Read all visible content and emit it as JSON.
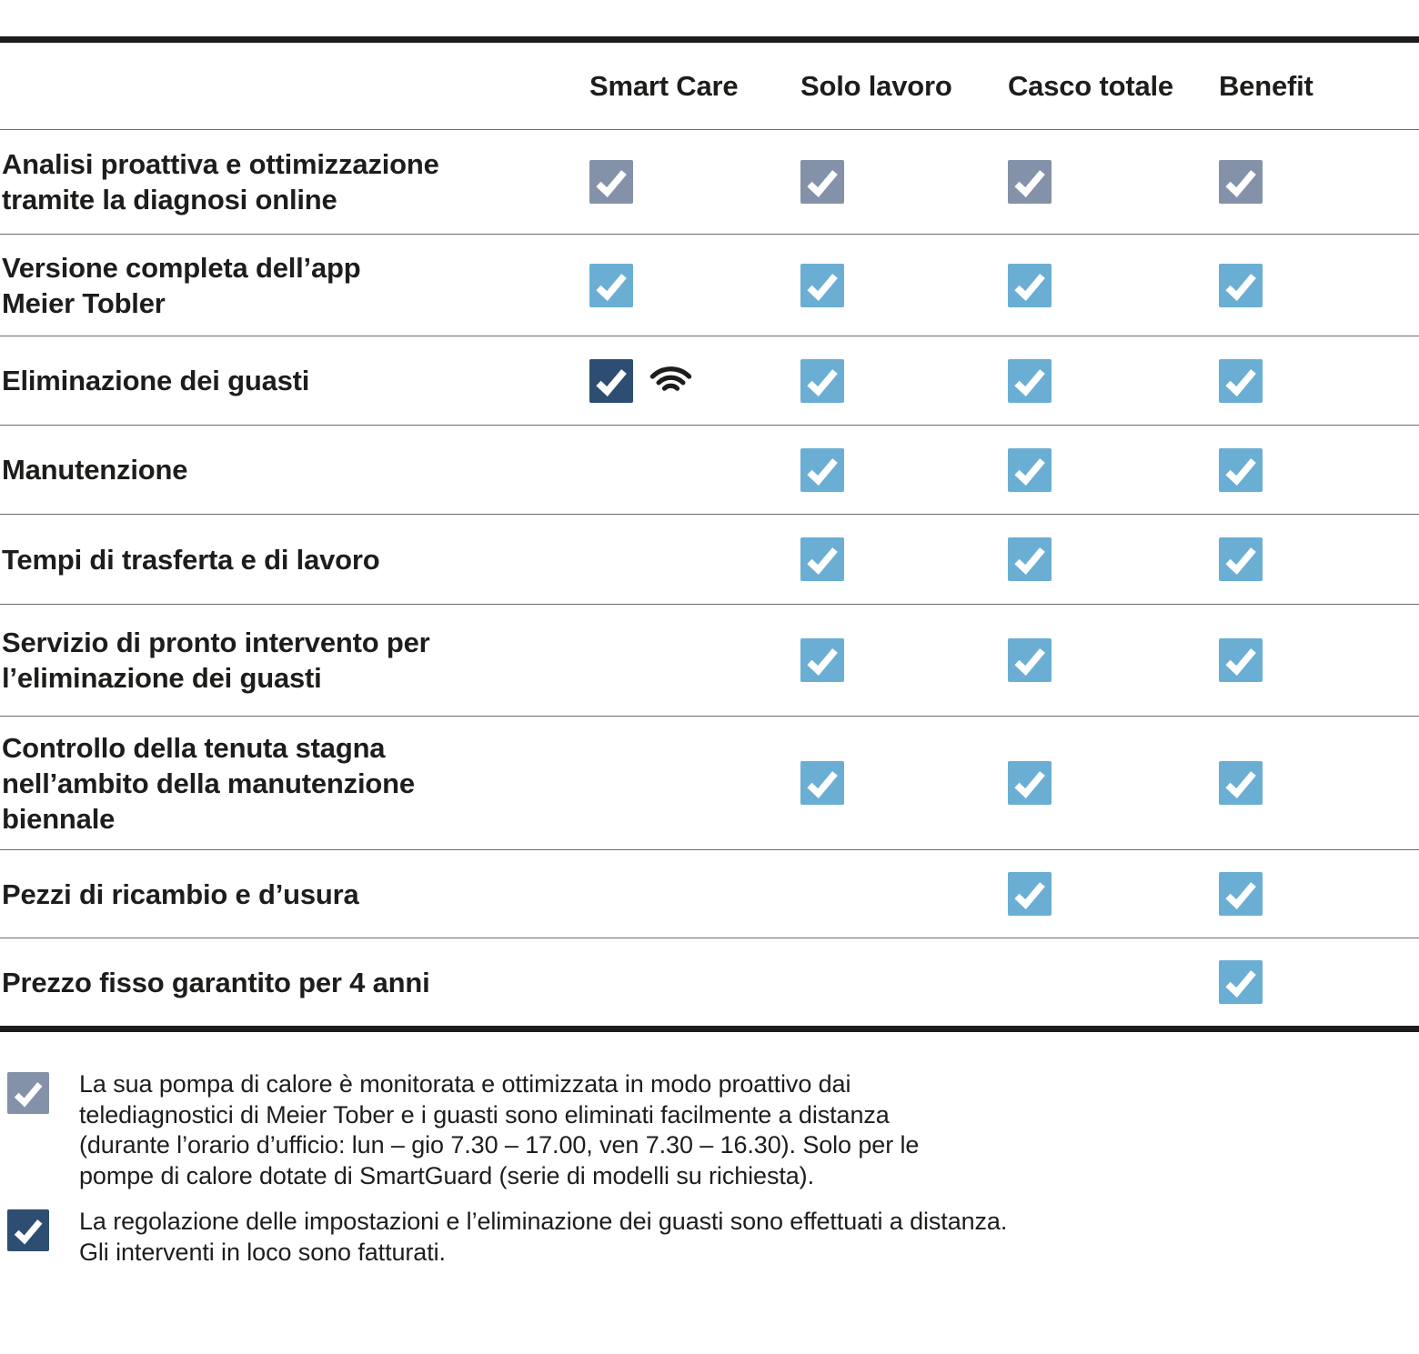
{
  "table": {
    "columns": [
      {
        "label": "Smart Care"
      },
      {
        "label": "Solo lavoro"
      },
      {
        "label": "Casco totale"
      },
      {
        "label": "Benefit"
      }
    ],
    "rows": [
      {
        "label": "Analisi proattiva e ottimizzazione\ntramite la diagnosi online",
        "checks": [
          "slate",
          "slate",
          "slate",
          "slate"
        ]
      },
      {
        "label": "Versione completa dell’app\nMeier Tobler",
        "checks": [
          "blue",
          "blue",
          "blue",
          "blue"
        ]
      },
      {
        "label": "Eliminazione dei guasti",
        "checks": [
          "navy-wifi",
          "blue",
          "blue",
          "blue"
        ]
      },
      {
        "label": "Manutenzione",
        "checks": [
          null,
          "blue",
          "blue",
          "blue"
        ]
      },
      {
        "label": "Tempi di trasferta e di lavoro",
        "checks": [
          null,
          "blue",
          "blue",
          "blue"
        ]
      },
      {
        "label": "Servizio di pronto intervento per\nl’eliminazione dei guasti",
        "checks": [
          null,
          "blue",
          "blue",
          "blue"
        ]
      },
      {
        "label": "Controllo della tenuta stagna\nnell’ambito della manutenzione\nbiennale",
        "checks": [
          null,
          "blue",
          "blue",
          "blue"
        ]
      },
      {
        "label": "Pezzi di ricambio e d’usura",
        "checks": [
          null,
          null,
          "blue",
          "blue"
        ]
      },
      {
        "label": "Prezzo fisso garantito per 4 anni",
        "checks": [
          null,
          null,
          null,
          "blue"
        ]
      }
    ]
  },
  "legend": [
    {
      "style": "slate",
      "text": "La sua pompa di calore è monitorata e ottimizzata in modo proattivo dai\ntelediagnostici di Meier Tober e i guasti sono eliminati facilmente a distanza\n(durante l’orario d’ufficio: lun – gio 7.30 – 17.00, ven 7.30 – 16.30). Solo per le\npompe di calore dotate di SmartGuard (serie di modelli su richiesta)."
    },
    {
      "style": "navy",
      "text": "La regolazione delle impostazioni e l’eliminazione dei guasti sono effettuati a distanza.\nGli interventi in loco sono fatturati."
    }
  ],
  "icons": {
    "check": "check-icon",
    "wifi": "wifi-icon"
  },
  "colors": {
    "slate": "#8492a9",
    "blue": "#6aaed4",
    "navy": "#2e4d72",
    "ink": "#1d1d1b",
    "separator": "#6b6b6b"
  }
}
